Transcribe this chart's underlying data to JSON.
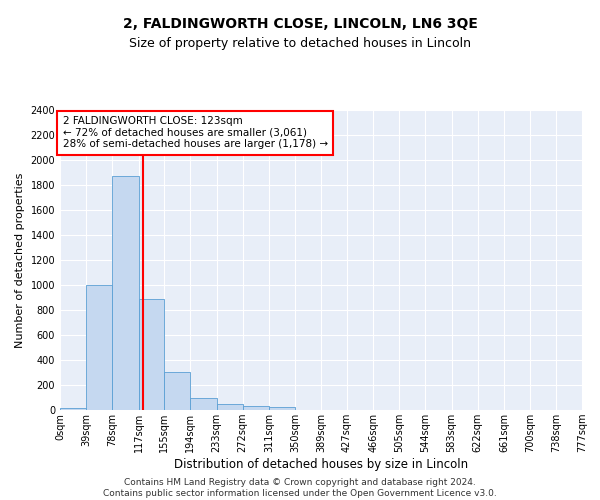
{
  "title": "2, FALDINGWORTH CLOSE, LINCOLN, LN6 3QE",
  "subtitle": "Size of property relative to detached houses in Lincoln",
  "xlabel": "Distribution of detached houses by size in Lincoln",
  "ylabel": "Number of detached properties",
  "bar_edges": [
    0,
    39,
    78,
    117,
    155,
    194,
    233,
    272,
    311,
    350,
    389,
    427,
    466,
    505,
    544,
    583,
    622,
    661,
    700,
    738,
    777
  ],
  "bar_heights": [
    20,
    1000,
    1870,
    890,
    305,
    100,
    48,
    30,
    25,
    0,
    0,
    0,
    0,
    0,
    0,
    0,
    0,
    0,
    0,
    0
  ],
  "bar_color": "#c5d8f0",
  "bar_edge_color": "#5a9fd4",
  "property_line_x": 123,
  "property_line_color": "red",
  "annotation_text": "2 FALDINGWORTH CLOSE: 123sqm\n← 72% of detached houses are smaller (3,061)\n28% of semi-detached houses are larger (1,178) →",
  "annotation_box_color": "white",
  "annotation_box_edge_color": "red",
  "ylim": [
    0,
    2400
  ],
  "yticks": [
    0,
    200,
    400,
    600,
    800,
    1000,
    1200,
    1400,
    1600,
    1800,
    2000,
    2200,
    2400
  ],
  "xtick_labels": [
    "0sqm",
    "39sqm",
    "78sqm",
    "117sqm",
    "155sqm",
    "194sqm",
    "233sqm",
    "272sqm",
    "311sqm",
    "350sqm",
    "389sqm",
    "427sqm",
    "466sqm",
    "505sqm",
    "544sqm",
    "583sqm",
    "622sqm",
    "661sqm",
    "700sqm",
    "738sqm",
    "777sqm"
  ],
  "background_color": "#e8eef8",
  "grid_color": "white",
  "footnote": "Contains HM Land Registry data © Crown copyright and database right 2024.\nContains public sector information licensed under the Open Government Licence v3.0.",
  "title_fontsize": 10,
  "subtitle_fontsize": 9,
  "xlabel_fontsize": 8.5,
  "ylabel_fontsize": 8,
  "tick_fontsize": 7,
  "annotation_fontsize": 7.5,
  "footnote_fontsize": 6.5
}
